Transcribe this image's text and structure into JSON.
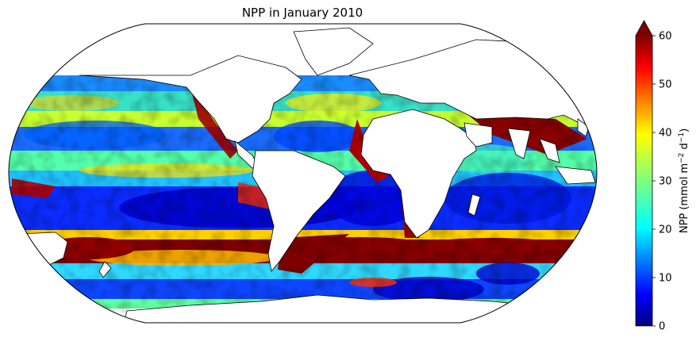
{
  "figure": {
    "title": "NPP in January 2010"
  },
  "map": {
    "projection": "Robinson",
    "variable": "Net primary production",
    "land_color": "#ffffff",
    "coastline_color": "#000000",
    "no_data_color": "#ffffff",
    "data_lat_range": [
      -70,
      60
    ]
  },
  "colorbar": {
    "label_main": "NPP (mmol m",
    "label_exp1": "−2",
    "label_mid": " d",
    "label_exp2": "−1",
    "label_end": ")",
    "min": 0,
    "max": 60,
    "extend": "max",
    "colormap": "jet",
    "ticks": [
      "0",
      "10",
      "20",
      "30",
      "40",
      "50",
      "60"
    ],
    "colors": [
      "#00007f",
      "#0000ff",
      "#007fff",
      "#00ffff",
      "#7fff7f",
      "#ffff00",
      "#ff7f00",
      "#ff0000",
      "#7f0000"
    ]
  }
}
